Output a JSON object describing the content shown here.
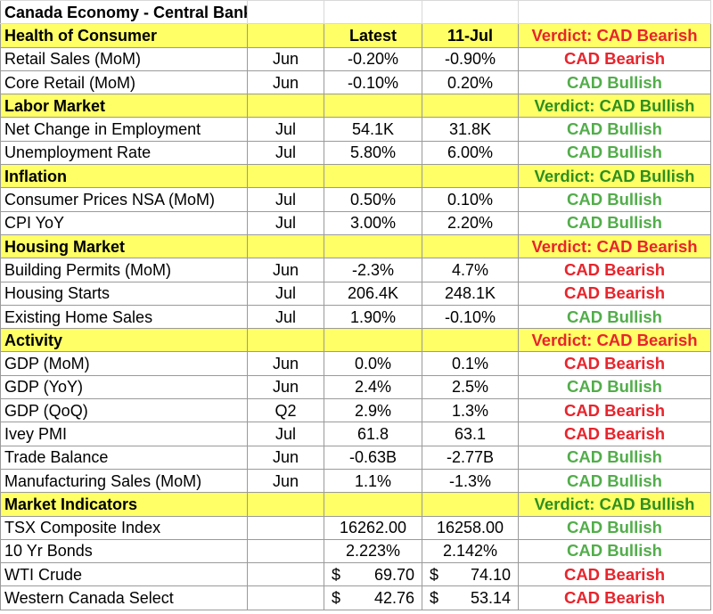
{
  "title": "Canada Economy - Central Bank Meeting",
  "colors": {
    "section_fill": "#ffff66",
    "bearish": "#e8242c",
    "bullish": "#52ad4a",
    "verdict_bullish": "#2f8f1f",
    "gridline": "#9a9a9a"
  },
  "sections": [
    {
      "name": "Health of Consumer",
      "col_latest": "Latest",
      "col_prior": "11-Jul",
      "verdict": "Verdict: CAD Bearish",
      "verdict_tone": "bearish",
      "rows": [
        {
          "indicator": "Retail Sales (MoM)",
          "period": "Jun",
          "latest": "-0.20%",
          "prior": "-0.90%",
          "signal": "CAD Bearish"
        },
        {
          "indicator": "Core Retail (MoM)",
          "period": "Jun",
          "latest": "-0.10%",
          "prior": "0.20%",
          "signal": "CAD Bullish"
        }
      ]
    },
    {
      "name": "Labor Market",
      "col_latest": "",
      "col_prior": "",
      "verdict": "Verdict: CAD Bullish",
      "verdict_tone": "bullish",
      "rows": [
        {
          "indicator": "Net Change in Employment",
          "period": "Jul",
          "latest": "54.1K",
          "prior": "31.8K",
          "signal": "CAD Bullish"
        },
        {
          "indicator": "Unemployment Rate",
          "period": "Jul",
          "latest": "5.80%",
          "prior": "6.00%",
          "signal": "CAD Bullish"
        }
      ]
    },
    {
      "name": "Inflation",
      "col_latest": "",
      "col_prior": "",
      "verdict": "Verdict: CAD Bullish",
      "verdict_tone": "bullish",
      "rows": [
        {
          "indicator": "Consumer Prices NSA (MoM)",
          "period": "Jul",
          "latest": "0.50%",
          "prior": "0.10%",
          "signal": "CAD Bullish"
        },
        {
          "indicator": "CPI YoY",
          "period": "Jul",
          "latest": "3.00%",
          "prior": "2.20%",
          "signal": "CAD Bullish"
        }
      ]
    },
    {
      "name": "Housing Market",
      "col_latest": "",
      "col_prior": "",
      "verdict": "Verdict: CAD Bearish",
      "verdict_tone": "bearish",
      "rows": [
        {
          "indicator": "Building Permits (MoM)",
          "period": "Jun",
          "latest": "-2.3%",
          "prior": "4.7%",
          "signal": "CAD Bearish"
        },
        {
          "indicator": "Housing Starts",
          "period": "Jul",
          "latest": "206.4K",
          "prior": "248.1K",
          "signal": "CAD Bearish"
        },
        {
          "indicator": "Existing Home Sales",
          "period": "Jul",
          "latest": "1.90%",
          "prior": "-0.10%",
          "signal": "CAD Bullish"
        }
      ]
    },
    {
      "name": "Activity",
      "col_latest": "",
      "col_prior": "",
      "verdict": "Verdict: CAD Bearish",
      "verdict_tone": "bearish",
      "rows": [
        {
          "indicator": "GDP (MoM)",
          "period": "Jun",
          "latest": "0.0%",
          "prior": "0.1%",
          "signal": "CAD Bearish"
        },
        {
          "indicator": "GDP (YoY)",
          "period": "Jun",
          "latest": "2.4%",
          "prior": "2.5%",
          "signal": "CAD Bullish"
        },
        {
          "indicator": "GDP (QoQ)",
          "period": "Q2",
          "latest": "2.9%",
          "prior": "1.3%",
          "signal": "CAD Bearish"
        },
        {
          "indicator": "Ivey PMI",
          "period": "Jul",
          "latest": "61.8",
          "prior": "63.1",
          "signal": "CAD Bearish"
        },
        {
          "indicator": "Trade Balance",
          "period": "Jun",
          "latest": "-0.63B",
          "prior": "-2.77B",
          "signal": "CAD Bullish"
        },
        {
          "indicator": "Manufacturing Sales (MoM)",
          "period": "Jun",
          "latest": "1.1%",
          "prior": "-1.3%",
          "signal": "CAD Bullish"
        }
      ]
    },
    {
      "name": "Market Indicators",
      "col_latest": "",
      "col_prior": "",
      "verdict": "Verdict: CAD Bullish",
      "verdict_tone": "bullish",
      "rows": [
        {
          "indicator": "TSX Composite Index",
          "period": "",
          "latest": "16262.00",
          "prior": "16258.00",
          "signal": "CAD Bullish"
        },
        {
          "indicator": "10 Yr Bonds",
          "period": "",
          "latest": "2.223%",
          "prior": "2.142%",
          "signal": "CAD Bullish"
        },
        {
          "indicator": "WTI Crude",
          "period": "",
          "currency": "$",
          "latest": "69.70",
          "prior": "74.10",
          "signal": "CAD Bearish"
        },
        {
          "indicator": "Western Canada Select",
          "period": "",
          "currency": "$",
          "latest": "42.76",
          "prior": "53.14",
          "signal": "CAD Bearish"
        }
      ]
    }
  ]
}
